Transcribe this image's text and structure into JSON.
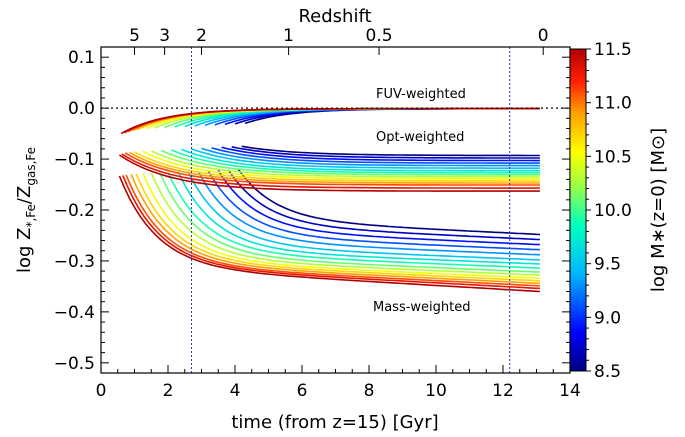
{
  "chart_data": {
    "type": "line",
    "xlabel": "time (from z=15) [Gyr]",
    "ylabel": "log Z",
    "ylabel_sub": "*,Fe",
    "ylabel_den": "Z",
    "ylabel_den_sub": "gas,Fe",
    "top_axis_label": "Redshift",
    "xlim": [
      0,
      14
    ],
    "ylim": [
      -0.52,
      0.12
    ],
    "x_ticks": [
      "0",
      "2",
      "4",
      "6",
      "8",
      "10",
      "12",
      "14"
    ],
    "x_tick_values": [
      0,
      2,
      4,
      6,
      8,
      10,
      12,
      14
    ],
    "y_ticks": [
      "0.1",
      "0.0",
      "−0.1",
      "−0.2",
      "−0.3",
      "−0.4",
      "−0.5"
    ],
    "y_tick_values": [
      0.1,
      0.0,
      -0.1,
      -0.2,
      -0.3,
      -0.4,
      -0.5
    ],
    "redshift_ticks": [
      "5",
      "3",
      "2",
      "1",
      "0.5",
      "0"
    ],
    "redshift_tick_times": [
      1.0,
      1.9,
      3.0,
      5.6,
      8.3,
      13.2
    ],
    "vertical_lines_x": [
      2.7,
      12.2
    ],
    "reference_line_y": 0.0,
    "colorbar": {
      "label": "log M∗(z=0) [M⊙]",
      "min": 8.5,
      "max": 11.5,
      "ticks": [
        "11.5",
        "11.0",
        "10.5",
        "10.0",
        "9.5",
        "9.0",
        "8.5"
      ],
      "tick_values": [
        11.5,
        11.0,
        10.5,
        10.0,
        9.5,
        9.0,
        8.5
      ]
    },
    "annotations": [
      "FUV-weighted",
      "Opt-weighted",
      "Mass-weighted"
    ],
    "mass_values": [
      8.5,
      8.7,
      8.9,
      9.1,
      9.3,
      9.5,
      9.7,
      9.9,
      10.1,
      10.3,
      10.5,
      10.7,
      10.9,
      11.1,
      11.3,
      11.5
    ],
    "series_groups": {
      "fuv": {
        "label": "FUV-weighted",
        "start_times": [
          4.3,
          4.0,
          3.7,
          3.4,
          3.1,
          2.8,
          2.5,
          2.2,
          1.9,
          1.6,
          1.35,
          1.1,
          0.95,
          0.8,
          0.7,
          0.6
        ],
        "start_values": [
          -0.03,
          -0.031,
          -0.032,
          -0.033,
          -0.034,
          -0.035,
          -0.036,
          -0.037,
          -0.038,
          -0.039,
          -0.04,
          -0.042,
          -0.044,
          -0.046,
          -0.048,
          -0.05
        ],
        "end_value": -0.001
      },
      "opt": {
        "label": "Opt-weighted",
        "start_times": [
          4.2,
          3.9,
          3.6,
          3.3,
          3.0,
          2.7,
          2.4,
          2.1,
          1.8,
          1.5,
          1.25,
          1.0,
          0.85,
          0.72,
          0.62,
          0.55
        ],
        "start_values": [
          -0.075,
          -0.076,
          -0.077,
          -0.078,
          -0.079,
          -0.08,
          -0.081,
          -0.082,
          -0.083,
          -0.084,
          -0.085,
          -0.086,
          -0.087,
          -0.088,
          -0.09,
          -0.092
        ],
        "end_values": [
          -0.093,
          -0.098,
          -0.103,
          -0.108,
          -0.113,
          -0.118,
          -0.123,
          -0.127,
          -0.131,
          -0.135,
          -0.139,
          -0.143,
          -0.147,
          -0.151,
          -0.157,
          -0.163
        ]
      },
      "mass": {
        "label": "Mass-weighted",
        "start_times": [
          4.1,
          3.8,
          3.5,
          3.2,
          2.9,
          2.6,
          2.3,
          2.0,
          1.75,
          1.5,
          1.25,
          1.05,
          0.9,
          0.75,
          0.65,
          0.55
        ],
        "start_values": [
          -0.12,
          -0.121,
          -0.122,
          -0.123,
          -0.124,
          -0.125,
          -0.125,
          -0.126,
          -0.126,
          -0.127,
          -0.128,
          -0.129,
          -0.13,
          -0.131,
          -0.132,
          -0.133
        ],
        "end_values": [
          -0.248,
          -0.258,
          -0.268,
          -0.278,
          -0.288,
          -0.298,
          -0.306,
          -0.314,
          -0.322,
          -0.328,
          -0.334,
          -0.339,
          -0.344,
          -0.349,
          -0.354,
          -0.36
        ],
        "plateau_values": [
          -0.22,
          -0.23,
          -0.24,
          -0.25,
          -0.26,
          -0.27,
          -0.278,
          -0.284,
          -0.29,
          -0.295,
          -0.299,
          -0.302,
          -0.305,
          -0.308,
          -0.31,
          -0.312
        ]
      }
    }
  }
}
